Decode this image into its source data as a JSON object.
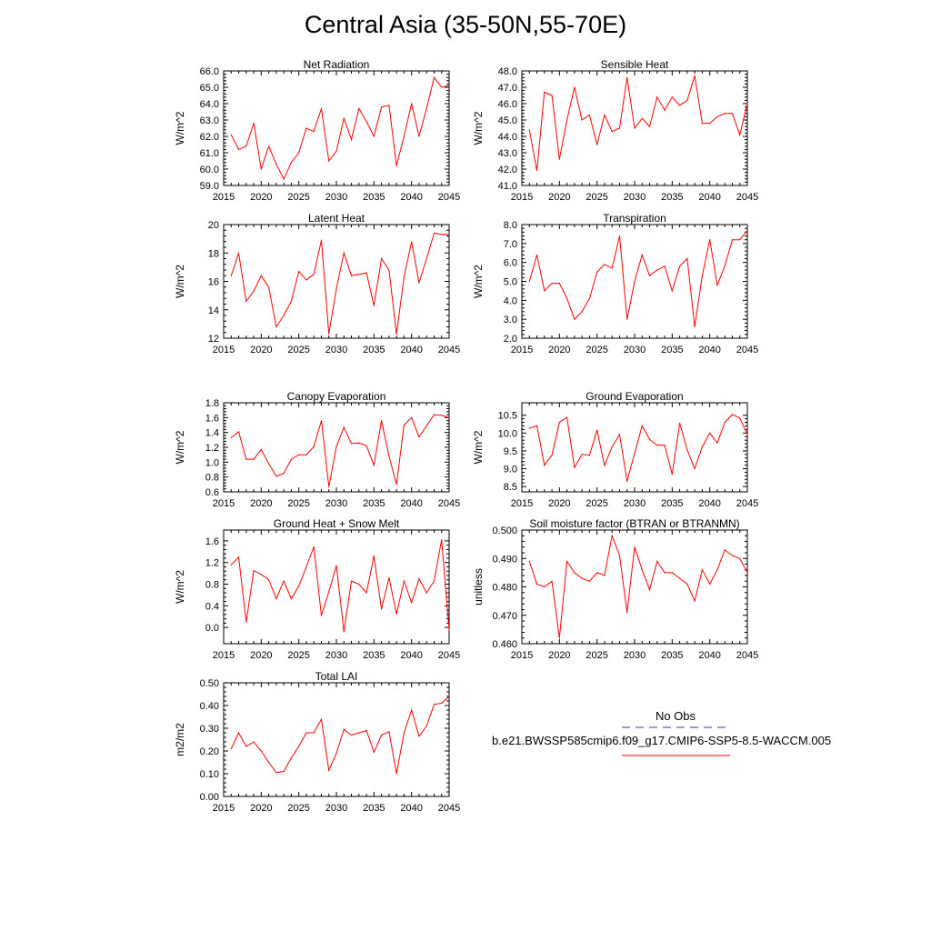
{
  "title": "Central Asia (35-50N,55-70E)",
  "legend": {
    "obs_label": "No Obs",
    "model_label": "b.e21.BWSSP585cmip6.f09_g17.CMIP6-SSP5-8.5-WACCM.005",
    "obs_color": "#3b3b8f",
    "model_color": "#ff0000"
  },
  "chart_data": [
    {
      "type": "line",
      "title": "Net Radiation",
      "ylabel": "W/m^2",
      "ylim": [
        59.0,
        66.0
      ],
      "yticks": [
        59.0,
        60.0,
        61.0,
        62.0,
        63.0,
        64.0,
        65.0,
        66.0
      ],
      "ytick_labels": [
        "59.0",
        "60.0",
        "61.0",
        "62.0",
        "63.0",
        "64.0",
        "65.0",
        "66.0"
      ],
      "xlim": [
        2015,
        2045
      ],
      "xticks": [
        2015,
        2020,
        2025,
        2030,
        2035,
        2040,
        2045
      ],
      "x": [
        2016,
        2017,
        2018,
        2019,
        2020,
        2021,
        2022,
        2023,
        2024,
        2025,
        2026,
        2027,
        2028,
        2029,
        2030,
        2031,
        2032,
        2033,
        2034,
        2035,
        2036,
        2037,
        2038,
        2039,
        2040,
        2041,
        2042,
        2043,
        2044,
        2045
      ],
      "series": [
        {
          "values": [
            62.1,
            61.2,
            61.4,
            62.8,
            60.0,
            61.4,
            60.3,
            59.4,
            60.4,
            61.0,
            62.5,
            62.3,
            63.7,
            60.5,
            61.1,
            63.1,
            61.8,
            63.7,
            62.9,
            62.0,
            63.8,
            63.9,
            60.2,
            62.0,
            64.0,
            62.0,
            63.7,
            65.6,
            65.0,
            65.1
          ]
        }
      ]
    },
    {
      "type": "line",
      "title": "Sensible Heat",
      "ylabel": "W/m^2",
      "ylim": [
        41.0,
        48.0
      ],
      "yticks": [
        41.0,
        42.0,
        43.0,
        44.0,
        45.0,
        46.0,
        47.0,
        48.0
      ],
      "ytick_labels": [
        "41.0",
        "42.0",
        "43.0",
        "44.0",
        "45.0",
        "46.0",
        "47.0",
        "48.0"
      ],
      "xlim": [
        2015,
        2045
      ],
      "xticks": [
        2015,
        2020,
        2025,
        2030,
        2035,
        2040,
        2045
      ],
      "x": [
        2016,
        2017,
        2018,
        2019,
        2020,
        2021,
        2022,
        2023,
        2024,
        2025,
        2026,
        2027,
        2028,
        2029,
        2030,
        2031,
        2032,
        2033,
        2034,
        2035,
        2036,
        2037,
        2038,
        2039,
        2040,
        2041,
        2042,
        2043,
        2044,
        2045
      ],
      "series": [
        {
          "values": [
            44.4,
            41.9,
            46.7,
            46.5,
            42.6,
            45.0,
            47.0,
            45.0,
            45.3,
            43.5,
            45.3,
            44.3,
            44.5,
            47.6,
            44.5,
            45.1,
            44.6,
            46.4,
            45.6,
            46.4,
            45.9,
            46.2,
            47.7,
            44.8,
            44.8,
            45.2,
            45.4,
            45.4,
            44.1,
            46.0
          ]
        }
      ]
    },
    {
      "type": "line",
      "title": "Latent Heat",
      "ylabel": "W/m^2",
      "ylim": [
        12,
        20
      ],
      "yticks": [
        12,
        14,
        16,
        18,
        20
      ],
      "ytick_labels": [
        "12",
        "14",
        "16",
        "18",
        "20"
      ],
      "xlim": [
        2015,
        2045
      ],
      "xticks": [
        2015,
        2020,
        2025,
        2030,
        2035,
        2040,
        2045
      ],
      "x": [
        2016,
        2017,
        2018,
        2019,
        2020,
        2021,
        2022,
        2023,
        2024,
        2025,
        2026,
        2027,
        2028,
        2029,
        2030,
        2031,
        2032,
        2033,
        2034,
        2035,
        2036,
        2037,
        2038,
        2039,
        2040,
        2041,
        2042,
        2043,
        2044,
        2045
      ],
      "series": [
        {
          "values": [
            16.4,
            18.0,
            14.6,
            15.3,
            16.4,
            15.6,
            12.8,
            13.6,
            14.6,
            16.7,
            16.1,
            16.5,
            18.9,
            12.3,
            15.5,
            18.0,
            16.4,
            16.5,
            16.6,
            14.3,
            17.6,
            16.8,
            12.3,
            16.3,
            18.8,
            15.9,
            17.6,
            19.4,
            19.3,
            19.3
          ]
        }
      ]
    },
    {
      "type": "line",
      "title": "Transpiration",
      "ylabel": "W/m^2",
      "ylim": [
        2.0,
        8.0
      ],
      "yticks": [
        2.0,
        3.0,
        4.0,
        5.0,
        6.0,
        7.0,
        8.0
      ],
      "ytick_labels": [
        "2.0",
        "3.0",
        "4.0",
        "5.0",
        "6.0",
        "7.0",
        "8.0"
      ],
      "xlim": [
        2015,
        2045
      ],
      "xticks": [
        2015,
        2020,
        2025,
        2030,
        2035,
        2040,
        2045
      ],
      "x": [
        2016,
        2017,
        2018,
        2019,
        2020,
        2021,
        2022,
        2023,
        2024,
        2025,
        2026,
        2027,
        2028,
        2029,
        2030,
        2031,
        2032,
        2033,
        2034,
        2035,
        2036,
        2037,
        2038,
        2039,
        2040,
        2041,
        2042,
        2043,
        2044,
        2045
      ],
      "series": [
        {
          "values": [
            5.0,
            6.4,
            4.5,
            4.9,
            4.9,
            4.1,
            3.0,
            3.4,
            4.1,
            5.5,
            5.9,
            5.7,
            7.4,
            3.0,
            5.0,
            6.4,
            5.3,
            5.6,
            5.8,
            4.5,
            5.8,
            6.2,
            2.6,
            5.3,
            7.2,
            4.8,
            5.8,
            7.2,
            7.2,
            7.7
          ]
        }
      ]
    },
    {
      "type": "line",
      "title": "Canopy Evaporation",
      "ylabel": "W/m^2",
      "ylim": [
        0.6,
        1.8
      ],
      "yticks": [
        0.6,
        0.8,
        1.0,
        1.2,
        1.4,
        1.6,
        1.8
      ],
      "ytick_labels": [
        "0.6",
        "0.8",
        "1.0",
        "1.2",
        "1.4",
        "1.6",
        "1.8"
      ],
      "xlim": [
        2015,
        2045
      ],
      "xticks": [
        2015,
        2020,
        2025,
        2030,
        2035,
        2040,
        2045
      ],
      "x": [
        2016,
        2017,
        2018,
        2019,
        2020,
        2021,
        2022,
        2023,
        2024,
        2025,
        2026,
        2027,
        2028,
        2029,
        2030,
        2031,
        2032,
        2033,
        2034,
        2035,
        2036,
        2037,
        2038,
        2039,
        2040,
        2041,
        2042,
        2043,
        2044,
        2045
      ],
      "series": [
        {
          "values": [
            1.33,
            1.41,
            1.04,
            1.04,
            1.17,
            0.98,
            0.81,
            0.85,
            1.04,
            1.1,
            1.1,
            1.21,
            1.56,
            0.67,
            1.21,
            1.47,
            1.25,
            1.26,
            1.22,
            0.96,
            1.56,
            1.08,
            0.7,
            1.5,
            1.6,
            1.34,
            1.49,
            1.64,
            1.63,
            1.6
          ]
        }
      ]
    },
    {
      "type": "line",
      "title": "Ground Evaporation",
      "ylabel": "W/m^2",
      "ylim": [
        8.35,
        10.85
      ],
      "yticks": [
        8.5,
        9.0,
        9.5,
        10.0,
        10.5
      ],
      "ytick_labels": [
        "8.5",
        "9.0",
        "9.5",
        "10.0",
        "10.5"
      ],
      "xlim": [
        2015,
        2045
      ],
      "xticks": [
        2015,
        2020,
        2025,
        2030,
        2035,
        2040,
        2045
      ],
      "x": [
        2016,
        2017,
        2018,
        2019,
        2020,
        2021,
        2022,
        2023,
        2024,
        2025,
        2026,
        2027,
        2028,
        2029,
        2030,
        2031,
        2032,
        2033,
        2034,
        2035,
        2036,
        2037,
        2038,
        2039,
        2040,
        2041,
        2042,
        2043,
        2044,
        2045
      ],
      "series": [
        {
          "values": [
            10.13,
            10.21,
            9.1,
            9.38,
            10.3,
            10.44,
            9.03,
            9.4,
            9.38,
            10.08,
            9.09,
            9.61,
            9.96,
            8.65,
            9.43,
            10.2,
            9.82,
            9.66,
            9.66,
            8.84,
            10.28,
            9.52,
            9.0,
            9.61,
            10.0,
            9.72,
            10.3,
            10.52,
            10.42,
            9.96
          ]
        }
      ]
    },
    {
      "type": "line",
      "title": "Ground Heat + Snow Melt",
      "ylabel": "W/m^2",
      "ylim": [
        -0.3,
        1.8
      ],
      "yticks": [
        0.0,
        0.4,
        0.8,
        1.2,
        1.6
      ],
      "ytick_labels": [
        "0.0",
        "0.4",
        "0.8",
        "1.2",
        "1.6"
      ],
      "xlim": [
        2015,
        2045
      ],
      "xticks": [
        2015,
        2020,
        2025,
        2030,
        2035,
        2040,
        2045
      ],
      "x": [
        2016,
        2017,
        2018,
        2019,
        2020,
        2021,
        2022,
        2023,
        2024,
        2025,
        2026,
        2027,
        2028,
        2029,
        2030,
        2031,
        2032,
        2033,
        2034,
        2035,
        2036,
        2037,
        2038,
        2039,
        2040,
        2041,
        2042,
        2043,
        2044,
        2045
      ],
      "series": [
        {
          "values": [
            1.16,
            1.3,
            0.1,
            1.05,
            0.98,
            0.88,
            0.53,
            0.86,
            0.53,
            0.77,
            1.12,
            1.49,
            0.22,
            0.66,
            1.14,
            -0.08,
            0.86,
            0.8,
            0.64,
            1.32,
            0.34,
            0.92,
            0.25,
            0.86,
            0.46,
            0.9,
            0.64,
            0.86,
            1.62,
            -0.05
          ]
        }
      ]
    },
    {
      "type": "line",
      "title": "Soil moisture factor (BTRAN or BTRANMN)",
      "ylabel": "unitless",
      "ylim": [
        0.46,
        0.5
      ],
      "yticks": [
        0.46,
        0.47,
        0.48,
        0.49,
        0.5
      ],
      "ytick_labels": [
        "0.460",
        "0.470",
        "0.480",
        "0.490",
        "0.500"
      ],
      "xlim": [
        2015,
        2045
      ],
      "xticks": [
        2015,
        2020,
        2025,
        2030,
        2035,
        2040,
        2045
      ],
      "x": [
        2016,
        2017,
        2018,
        2019,
        2020,
        2021,
        2022,
        2023,
        2024,
        2025,
        2026,
        2027,
        2028,
        2029,
        2030,
        2031,
        2032,
        2033,
        2034,
        2035,
        2036,
        2037,
        2038,
        2039,
        2040,
        2041,
        2042,
        2043,
        2044,
        2045
      ],
      "series": [
        {
          "values": [
            0.489,
            0.481,
            0.48,
            0.482,
            0.462,
            0.489,
            0.485,
            0.483,
            0.482,
            0.485,
            0.484,
            0.498,
            0.491,
            0.471,
            0.494,
            0.486,
            0.479,
            0.489,
            0.485,
            0.485,
            0.483,
            0.481,
            0.475,
            0.486,
            0.481,
            0.486,
            0.493,
            0.491,
            0.49,
            0.485
          ]
        }
      ]
    },
    {
      "type": "line",
      "title": "Total LAI",
      "ylabel": "m2/m2",
      "ylim": [
        0.0,
        0.5
      ],
      "yticks": [
        0.0,
        0.1,
        0.2,
        0.3,
        0.4,
        0.5
      ],
      "ytick_labels": [
        "0.00",
        "0.10",
        "0.20",
        "0.30",
        "0.40",
        "0.50"
      ],
      "xlim": [
        2015,
        2045
      ],
      "xticks": [
        2015,
        2020,
        2025,
        2030,
        2035,
        2040,
        2045
      ],
      "x": [
        2016,
        2017,
        2018,
        2019,
        2020,
        2021,
        2022,
        2023,
        2024,
        2025,
        2026,
        2027,
        2028,
        2029,
        2030,
        2031,
        2032,
        2033,
        2034,
        2035,
        2036,
        2037,
        2038,
        2039,
        2040,
        2041,
        2042,
        2043,
        2044,
        2045
      ],
      "series": [
        {
          "values": [
            0.21,
            0.28,
            0.22,
            0.24,
            0.2,
            0.15,
            0.105,
            0.11,
            0.17,
            0.22,
            0.28,
            0.28,
            0.34,
            0.115,
            0.19,
            0.295,
            0.27,
            0.28,
            0.29,
            0.195,
            0.27,
            0.285,
            0.1,
            0.28,
            0.38,
            0.265,
            0.31,
            0.405,
            0.41,
            0.44
          ]
        }
      ]
    }
  ]
}
